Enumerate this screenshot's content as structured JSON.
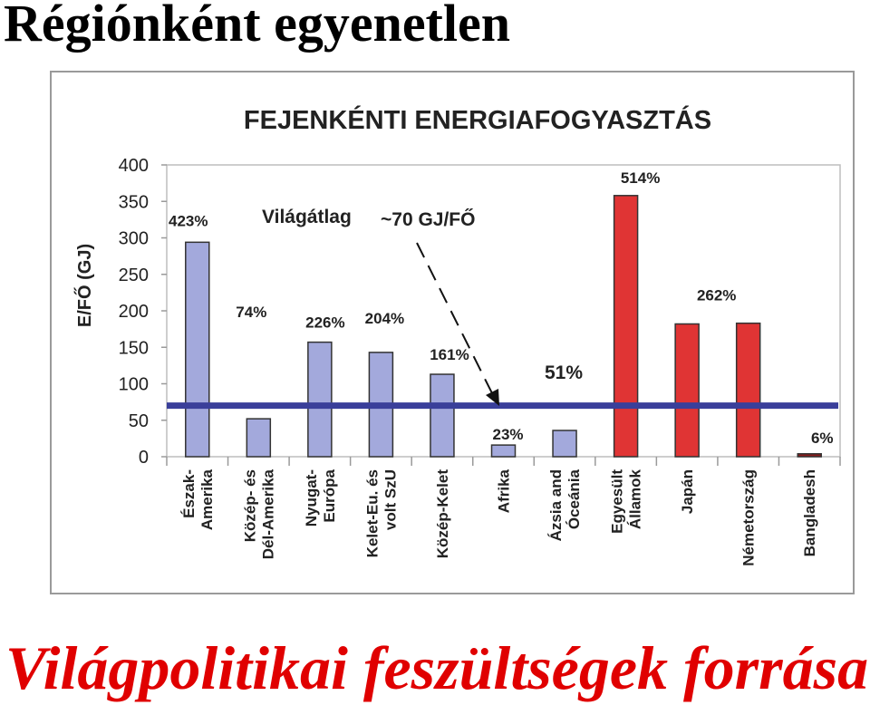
{
  "slide": {
    "title": "Régiónként egyenetlen",
    "footer": "Világpolitikai feszültségek forrása"
  },
  "chart_data": {
    "type": "bar",
    "title": "FEJENKÉNTI ENERGIAFOGYASZTÁS",
    "ylabel": "E/FŐ (GJ)",
    "xlabel": "",
    "ylim": [
      0,
      400
    ],
    "yticks": [
      0,
      50,
      100,
      150,
      200,
      250,
      300,
      350,
      400
    ],
    "grid": false,
    "reference_line": {
      "value": 70,
      "label_prefix": "Világátlag",
      "label_value": "~70 GJ/FŐ",
      "color": "#3a3f9a"
    },
    "categories": [
      [
        "Észak-",
        "Amerika"
      ],
      [
        "Közép- és",
        "Dél-Amerika"
      ],
      [
        "Nyugat-",
        "Európa"
      ],
      [
        "Kelet-Eu. és",
        "volt SzU"
      ],
      [
        "Közép-Kelet"
      ],
      [
        "Afrika"
      ],
      [
        "Ázsia and",
        "Óceánia"
      ],
      [
        "Egyesült",
        "Államok"
      ],
      [
        "Japán"
      ],
      [
        "Németország"
      ],
      [
        "Bangladesh"
      ]
    ],
    "values": [
      294,
      52,
      157,
      143,
      113,
      16,
      36,
      358,
      182,
      183,
      4
    ],
    "bar_labels": [
      "423%",
      "74%",
      "226%",
      "204%",
      "161%",
      "23%",
      "",
      "514%",
      "",
      "262%",
      "6%"
    ],
    "group_annotation": {
      "text": "51%",
      "color": "#7b2a8c"
    },
    "colors": [
      "#a3a9dc",
      "#a3a9dc",
      "#a3a9dc",
      "#a3a9dc",
      "#a3a9dc",
      "#a3a9dc",
      "#a3a9dc",
      "#e03434",
      "#e03434",
      "#e03434",
      "#8a1a1a"
    ],
    "label_colors": [
      "#222222",
      "#222222",
      "#222222",
      "#222222",
      "#222222",
      "#222222",
      "#222222",
      "#222222",
      "#222222",
      "#222222",
      "#3a5aa8"
    ]
  }
}
